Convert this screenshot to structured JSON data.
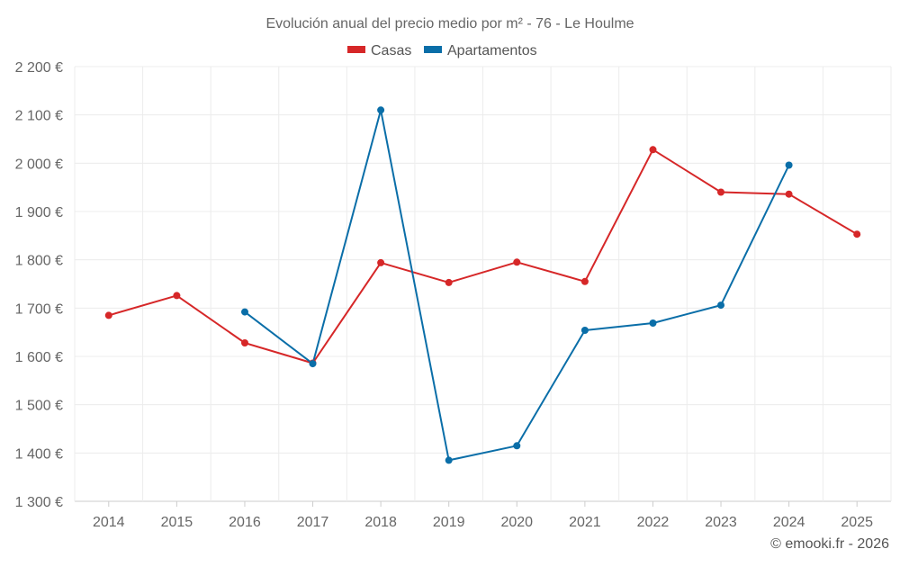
{
  "chart_data": {
    "type": "line",
    "title": "Evolución anual del precio medio por m² - 76 - Le Houlme",
    "categories": [
      "2014",
      "2015",
      "2016",
      "2017",
      "2018",
      "2019",
      "2020",
      "2021",
      "2022",
      "2023",
      "2024",
      "2025"
    ],
    "ylim": [
      1300,
      2200
    ],
    "yticks": [
      1300,
      1400,
      1500,
      1600,
      1700,
      1800,
      1900,
      2000,
      2100,
      2200
    ],
    "ytick_labels": [
      "1 300 €",
      "1 400 €",
      "1 500 €",
      "1 600 €",
      "1 700 €",
      "1 800 €",
      "1 900 €",
      "2 000 €",
      "2 100 €",
      "2 200 €"
    ],
    "xlabel": "",
    "ylabel": "",
    "legend_position": "top-center",
    "series": [
      {
        "name": "Casas",
        "color": "#d62728",
        "values": [
          1685,
          1726,
          1628,
          1586,
          1794,
          1753,
          1795,
          1755,
          2028,
          1940,
          1936,
          1853
        ]
      },
      {
        "name": "Apartamentos",
        "color": "#0a6ea8",
        "values": [
          null,
          null,
          1692,
          1585,
          2110,
          1385,
          1415,
          1654,
          1669,
          1706,
          1996,
          null
        ]
      }
    ]
  },
  "credit": "© emooki.fr - 2026"
}
